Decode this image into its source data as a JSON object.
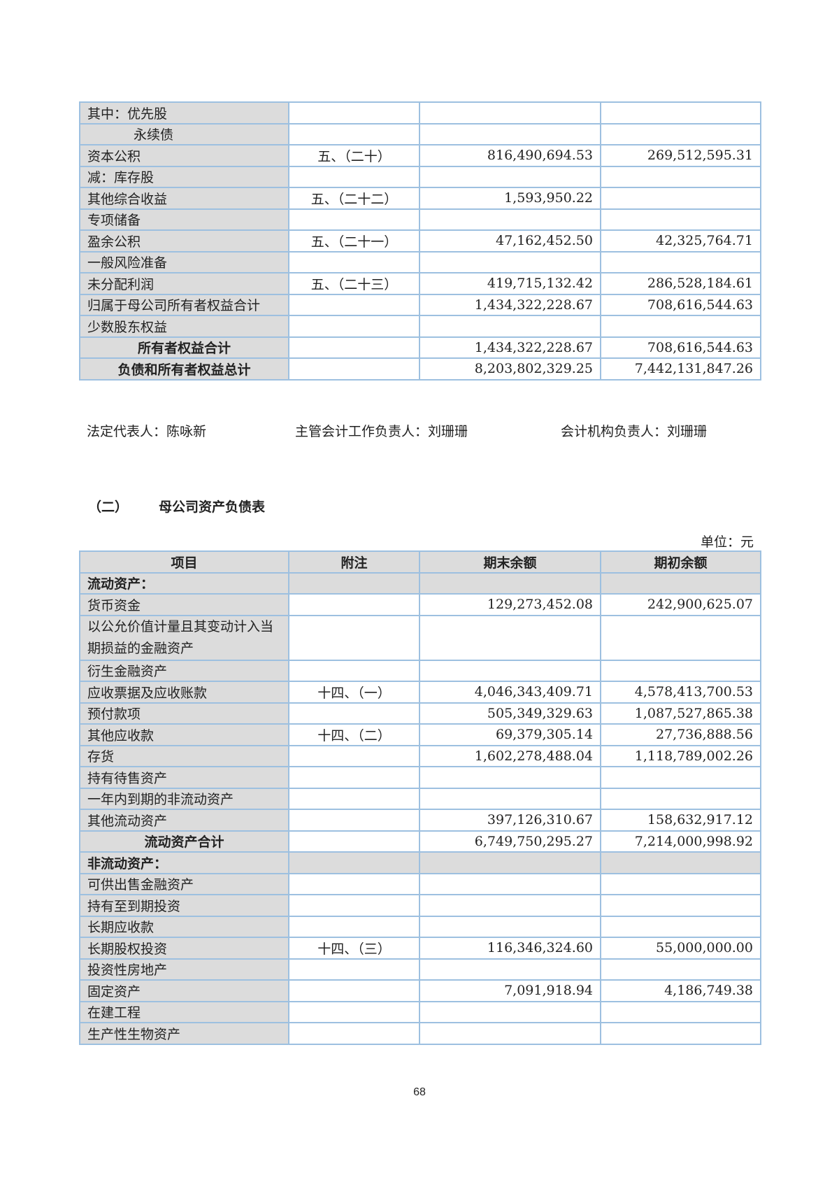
{
  "table1": {
    "rows": [
      {
        "label": "其中：优先股",
        "note": "",
        "end": "",
        "begin": ""
      },
      {
        "label": "永续债",
        "note": "",
        "end": "",
        "begin": "",
        "style": "indent"
      },
      {
        "label": "资本公积",
        "note": "五、（二十）",
        "end": "816,490,694.53",
        "begin": "269,512,595.31"
      },
      {
        "label": "减：库存股",
        "note": "",
        "end": "",
        "begin": ""
      },
      {
        "label": "其他综合收益",
        "note": "五、（二十二）",
        "end": "1,593,950.22",
        "begin": ""
      },
      {
        "label": "专项储备",
        "note": "",
        "end": "",
        "begin": ""
      },
      {
        "label": "盈余公积",
        "note": "五、（二十一）",
        "end": "47,162,452.50",
        "begin": "42,325,764.71"
      },
      {
        "label": "一般风险准备",
        "note": "",
        "end": "",
        "begin": ""
      },
      {
        "label": "未分配利润",
        "note": "五、（二十三）",
        "end": "419,715,132.42",
        "begin": "286,528,184.61"
      },
      {
        "label": "归属于母公司所有者权益合计",
        "note": "",
        "end": "1,434,322,228.67",
        "begin": "708,616,544.63"
      },
      {
        "label": "少数股东权益",
        "note": "",
        "end": "",
        "begin": ""
      },
      {
        "label": "所有者权益合计",
        "note": "",
        "end": "1,434,322,228.67",
        "begin": "708,616,544.63",
        "style": "total"
      },
      {
        "label": "负债和所有者权益总计",
        "note": "",
        "end": "8,203,802,329.25",
        "begin": "7,442,131,847.26",
        "style": "total"
      }
    ]
  },
  "signatures": {
    "legal_rep": "法定代表人：陈咏新",
    "accounting_head": "主管会计工作负责人：刘珊珊",
    "accounting_org_head": "会计机构负责人：刘珊珊"
  },
  "section": {
    "number": "（二）",
    "title": "母公司资产负债表"
  },
  "unit": "单位：元",
  "table2": {
    "headers": [
      "项目",
      "附注",
      "期末余额",
      "期初余额"
    ],
    "rows": [
      {
        "label": "流动资产：",
        "note": "",
        "end": "",
        "begin": "",
        "style": "section"
      },
      {
        "label": "货币资金",
        "note": "",
        "end": "129,273,452.08",
        "begin": "242,900,625.07"
      },
      {
        "label": "以公允价值计量且其变动计入当期损益的金融资产",
        "note": "",
        "end": "",
        "begin": "",
        "style": "tall"
      },
      {
        "label": "衍生金融资产",
        "note": "",
        "end": "",
        "begin": ""
      },
      {
        "label": "应收票据及应收账款",
        "note": "十四、（一）",
        "end": "4,046,343,409.71",
        "begin": "4,578,413,700.53"
      },
      {
        "label": "预付款项",
        "note": "",
        "end": "505,349,329.63",
        "begin": "1,087,527,865.38"
      },
      {
        "label": "其他应收款",
        "note": "十四、（二）",
        "end": "69,379,305.14",
        "begin": "27,736,888.56"
      },
      {
        "label": "存货",
        "note": "",
        "end": "1,602,278,488.04",
        "begin": "1,118,789,002.26"
      },
      {
        "label": "持有待售资产",
        "note": "",
        "end": "",
        "begin": ""
      },
      {
        "label": "一年内到期的非流动资产",
        "note": "",
        "end": "",
        "begin": ""
      },
      {
        "label": "其他流动资产",
        "note": "",
        "end": "397,126,310.67",
        "begin": "158,632,917.12"
      },
      {
        "label": "流动资产合计",
        "note": "",
        "end": "6,749,750,295.27",
        "begin": "7,214,000,998.92",
        "style": "total"
      },
      {
        "label": "非流动资产：",
        "note": "",
        "end": "",
        "begin": "",
        "style": "section"
      },
      {
        "label": "可供出售金融资产",
        "note": "",
        "end": "",
        "begin": ""
      },
      {
        "label": "持有至到期投资",
        "note": "",
        "end": "",
        "begin": ""
      },
      {
        "label": "长期应收款",
        "note": "",
        "end": "",
        "begin": ""
      },
      {
        "label": "长期股权投资",
        "note": "十四、（三）",
        "end": "116,346,324.60",
        "begin": "55,000,000.00"
      },
      {
        "label": "投资性房地产",
        "note": "",
        "end": "",
        "begin": ""
      },
      {
        "label": "固定资产",
        "note": "",
        "end": "7,091,918.94",
        "begin": "4,186,749.38"
      },
      {
        "label": "在建工程",
        "note": "",
        "end": "",
        "begin": ""
      },
      {
        "label": "生产性生物资产",
        "note": "",
        "end": "",
        "begin": ""
      }
    ]
  },
  "page_number": "68",
  "colors": {
    "border": "#9dc0e0",
    "shade": "#dcdcdc"
  }
}
